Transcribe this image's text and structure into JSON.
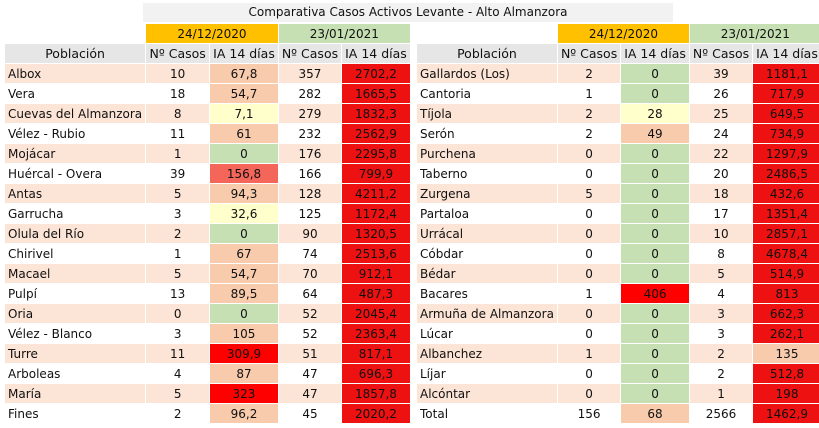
{
  "title": "Comparativa Casos Activos  Levante - Alto Almanzora",
  "left": {
    "dates": [
      "24/12/2020",
      "23/01/2021"
    ],
    "headers": [
      "Población",
      "Nº Casos",
      "IA 14 días",
      "Nº Casos",
      "IA 14 días"
    ],
    "rows": [
      [
        "Albox",
        "10",
        "67,8",
        "357",
        "2702,2"
      ],
      [
        "Vera",
        "18",
        "54,7",
        "282",
        "1665,5"
      ],
      [
        "Cuevas del Almanzora",
        "8",
        "7,1",
        "279",
        "1832,3"
      ],
      [
        "Vélez - Rubio",
        "11",
        "61",
        "232",
        "2562,9"
      ],
      [
        "Mojácar",
        "1",
        "0",
        "176",
        "2295,8"
      ],
      [
        "Huércal - Overa",
        "39",
        "156,8",
        "166",
        "799,9"
      ],
      [
        "Antas",
        "5",
        "94,3",
        "128",
        "4211,2"
      ],
      [
        "Garrucha",
        "3",
        "32,6",
        "125",
        "1172,4"
      ],
      [
        "Olula del Río",
        "2",
        "0",
        "90",
        "1320,5"
      ],
      [
        "Chirivel",
        "1",
        "67",
        "74",
        "2513,6"
      ],
      [
        "Macael",
        "5",
        "54,7",
        "70",
        "912,1"
      ],
      [
        "Pulpí",
        "13",
        "89,5",
        "64",
        "487,3"
      ],
      [
        "Oria",
        "0",
        "0",
        "52",
        "2045,4"
      ],
      [
        "Vélez - Blanco",
        "3",
        "105",
        "52",
        "2363,4"
      ],
      [
        "Turre",
        "11",
        "309,9",
        "51",
        "817,1"
      ],
      [
        "Arboleas",
        "4",
        "87",
        "47",
        "696,3"
      ],
      [
        "María",
        "5",
        "323",
        "47",
        "1857,8"
      ],
      [
        "Fines",
        "2",
        "96,2",
        "45",
        "2020,2"
      ]
    ]
  },
  "right": {
    "dates": [
      "24/12/2020",
      "23/01/2021"
    ],
    "headers": [
      "Población",
      "Nº Casos",
      "IA 14 días",
      "Nº Casos",
      "IA 14 días"
    ],
    "rows": [
      [
        "Gallardos (Los)",
        "2",
        "0",
        "39",
        "1181,1"
      ],
      [
        "Cantoria",
        "1",
        "0",
        "26",
        "717,9"
      ],
      [
        "Tíjola",
        "2",
        "28",
        "25",
        "649,5"
      ],
      [
        "Serón",
        "2",
        "49",
        "24",
        "734,9"
      ],
      [
        "Purchena",
        "0",
        "0",
        "22",
        "1297,9"
      ],
      [
        "Taberno",
        "0",
        "0",
        "20",
        "2486,5"
      ],
      [
        "Zurgena",
        "5",
        "0",
        "18",
        "432,6"
      ],
      [
        "Partaloa",
        "0",
        "0",
        "17",
        "1351,4"
      ],
      [
        "Urrácal",
        "0",
        "0",
        "10",
        "2857,1"
      ],
      [
        "Cóbdar",
        "0",
        "0",
        "8",
        "4678,4"
      ],
      [
        "Bédar",
        "0",
        "0",
        "5",
        "514,9"
      ],
      [
        "Bacares",
        "1",
        "406",
        "4",
        "813"
      ],
      [
        "Armuña de Almanzora",
        "0",
        "0",
        "3",
        "662,3"
      ],
      [
        "Lúcar",
        "0",
        "0",
        "3",
        "262,1"
      ],
      [
        "Albanchez",
        "1",
        "0",
        "2",
        "135"
      ],
      [
        "Líjar",
        "0",
        "0",
        "2",
        "512,8"
      ],
      [
        "Alcóntar",
        "0",
        "0",
        "1",
        "198"
      ],
      [
        "Total",
        "156",
        "68",
        "2566",
        "1462,9"
      ]
    ]
  }
}
